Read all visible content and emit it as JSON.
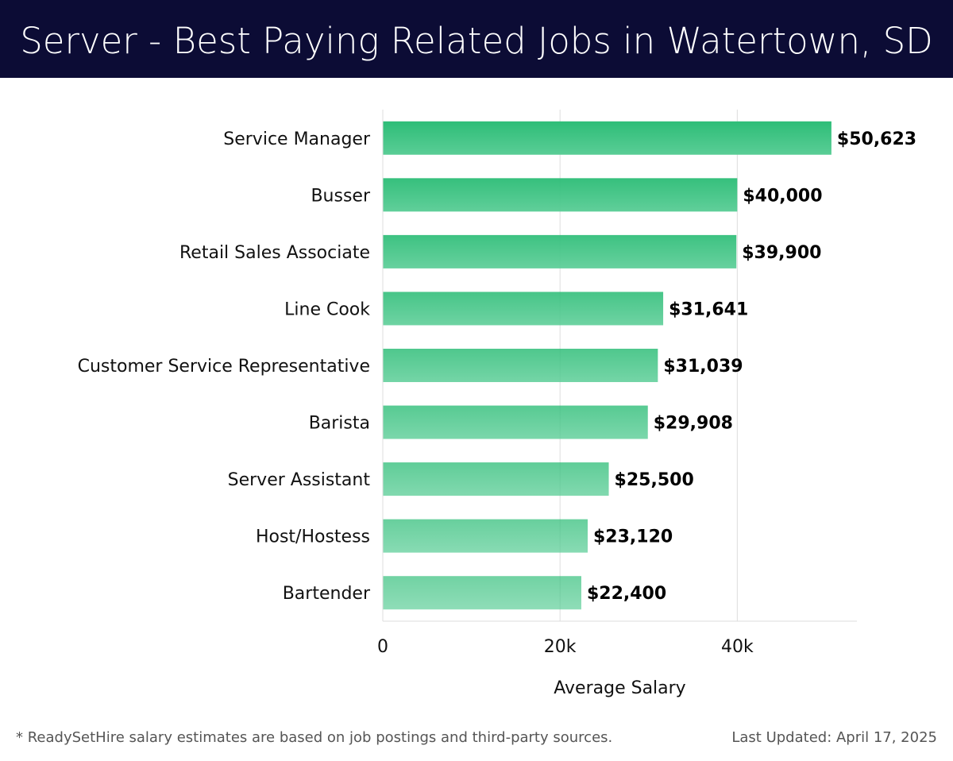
{
  "page": {
    "title": "Server - Best Paying Related Jobs in Watertown, SD",
    "footnote": "* ReadySetHire salary estimates are based on job postings and third-party sources.",
    "last_updated": "Last Updated: April 17, 2025"
  },
  "colors": {
    "header_bg": "#0c0c35",
    "bar_top": "#2dbd77",
    "bar_bottom": "#5acd96",
    "grid": "#dddddd",
    "label": "#111111",
    "value_label": "#000000"
  },
  "chart_data": {
    "type": "bar",
    "orientation": "horizontal",
    "xlabel": "Average Salary",
    "ylabel": "",
    "xlim": [
      0,
      53500
    ],
    "grid": true,
    "x_ticks": [
      {
        "value": 0,
        "label": "0"
      },
      {
        "value": 20000,
        "label": "20k"
      },
      {
        "value": 40000,
        "label": "40k"
      }
    ],
    "categories": [
      "Service Manager",
      "Busser",
      "Retail Sales Associate",
      "Line Cook",
      "Customer Service Representative",
      "Barista",
      "Server Assistant",
      "Host/Hostess",
      "Bartender"
    ],
    "values": [
      50623,
      40000,
      39900,
      31641,
      31039,
      29908,
      25500,
      23120,
      22400
    ],
    "value_labels": [
      "$50,623",
      "$40,000",
      "$39,900",
      "$31,641",
      "$31,039",
      "$29,908",
      "$25,500",
      "$23,120",
      "$22,400"
    ]
  }
}
